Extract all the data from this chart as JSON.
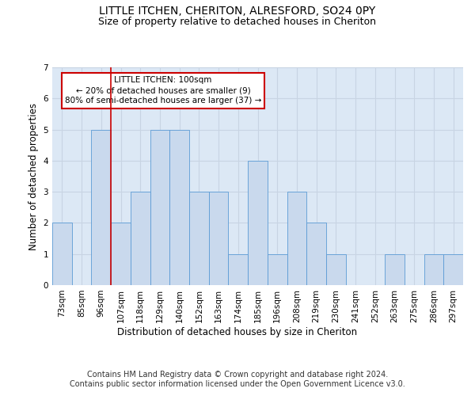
{
  "title": "LITTLE ITCHEN, CHERITON, ALRESFORD, SO24 0PY",
  "subtitle": "Size of property relative to detached houses in Cheriton",
  "xlabel": "Distribution of detached houses by size in Cheriton",
  "ylabel": "Number of detached properties",
  "footer_line1": "Contains HM Land Registry data © Crown copyright and database right 2024.",
  "footer_line2": "Contains public sector information licensed under the Open Government Licence v3.0.",
  "categories": [
    "73sqm",
    "85sqm",
    "96sqm",
    "107sqm",
    "118sqm",
    "129sqm",
    "140sqm",
    "152sqm",
    "163sqm",
    "174sqm",
    "185sqm",
    "196sqm",
    "208sqm",
    "219sqm",
    "230sqm",
    "241sqm",
    "252sqm",
    "263sqm",
    "275sqm",
    "286sqm",
    "297sqm"
  ],
  "values": [
    2,
    0,
    5,
    2,
    3,
    5,
    5,
    3,
    3,
    1,
    4,
    1,
    3,
    2,
    1,
    0,
    0,
    1,
    0,
    1,
    1
  ],
  "bar_color": "#c9d9ed",
  "bar_edge_color": "#5b9bd5",
  "annotation_box_text": "LITTLE ITCHEN: 100sqm\n← 20% of detached houses are smaller (9)\n80% of semi-detached houses are larger (37) →",
  "annotation_box_color": "#ffffff",
  "annotation_box_edge_color": "#cc0000",
  "red_line_x": 2.5,
  "red_line_color": "#cc0000",
  "ylim": [
    0,
    7
  ],
  "yticks": [
    0,
    1,
    2,
    3,
    4,
    5,
    6,
    7
  ],
  "grid_color": "#c8d4e3",
  "background_color": "#dce8f5",
  "title_fontsize": 10,
  "subtitle_fontsize": 9,
  "axis_label_fontsize": 8.5,
  "tick_fontsize": 7.5,
  "footer_fontsize": 7
}
